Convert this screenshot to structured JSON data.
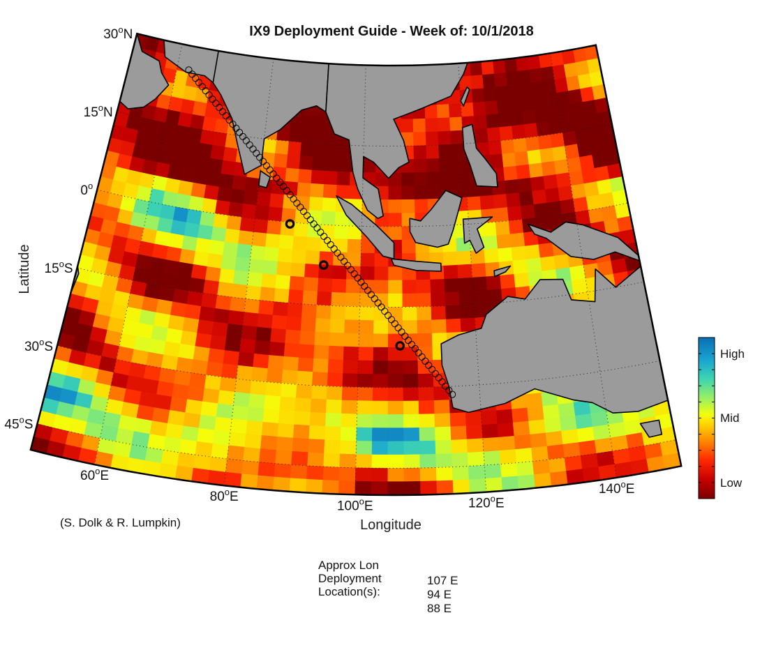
{
  "title": "IX9 Deployment Guide - Week of: 10/1/2018",
  "map": {
    "xlabel": "Longitude",
    "ylabel": "Latitude",
    "lon_range": [
      50,
      150
    ],
    "lat_range": [
      -50,
      30
    ],
    "lat_ticks": [
      {
        "value": 30,
        "deg": "30",
        "hemi": "N"
      },
      {
        "value": 15,
        "deg": "15",
        "hemi": "N"
      },
      {
        "value": 0,
        "deg": "0",
        "hemi": ""
      },
      {
        "value": -15,
        "deg": "15",
        "hemi": "S"
      },
      {
        "value": -30,
        "deg": "30",
        "hemi": "S"
      },
      {
        "value": -45,
        "deg": "45",
        "hemi": "S"
      }
    ],
    "lon_ticks": [
      {
        "value": 60,
        "deg": "60",
        "hemi": "E"
      },
      {
        "value": 80,
        "deg": "80",
        "hemi": "E"
      },
      {
        "value": 100,
        "deg": "100",
        "hemi": "E"
      },
      {
        "value": 120,
        "deg": "120",
        "hemi": "E"
      },
      {
        "value": 140,
        "deg": "140",
        "hemi": "E"
      }
    ],
    "degree_symbol": "o",
    "grid": "dotted",
    "land_color": "#9b9b9b",
    "ocean_colormap": "jet"
  },
  "route": {
    "start": {
      "lon": 62.5,
      "lat": 25.5
    },
    "end": {
      "lon": 115.5,
      "lat": -31.5
    },
    "marker": "open-circle",
    "markers": [
      {
        "lon": 86.6,
        "lat": -0.3
      },
      {
        "lon": 93.3,
        "lat": -7.5
      },
      {
        "lon": 107.0,
        "lat": -22.2
      }
    ]
  },
  "colorbar": {
    "labels": [
      "High",
      "Mid",
      "Low"
    ],
    "colors": [
      "#7a0000",
      "#c80000",
      "#ff2a00",
      "#ff8a00",
      "#ffd200",
      "#f4ff0a",
      "#9cf060",
      "#3fd6b0",
      "#1aa4d2",
      "#0a6fb2"
    ]
  },
  "credit": "(S. Dolk & R. Lumpkin)",
  "deployment": {
    "label": "Approx Lon\nDeployment\nLocation(s):",
    "values": [
      "107 E",
      "94 E",
      "88 E"
    ]
  }
}
